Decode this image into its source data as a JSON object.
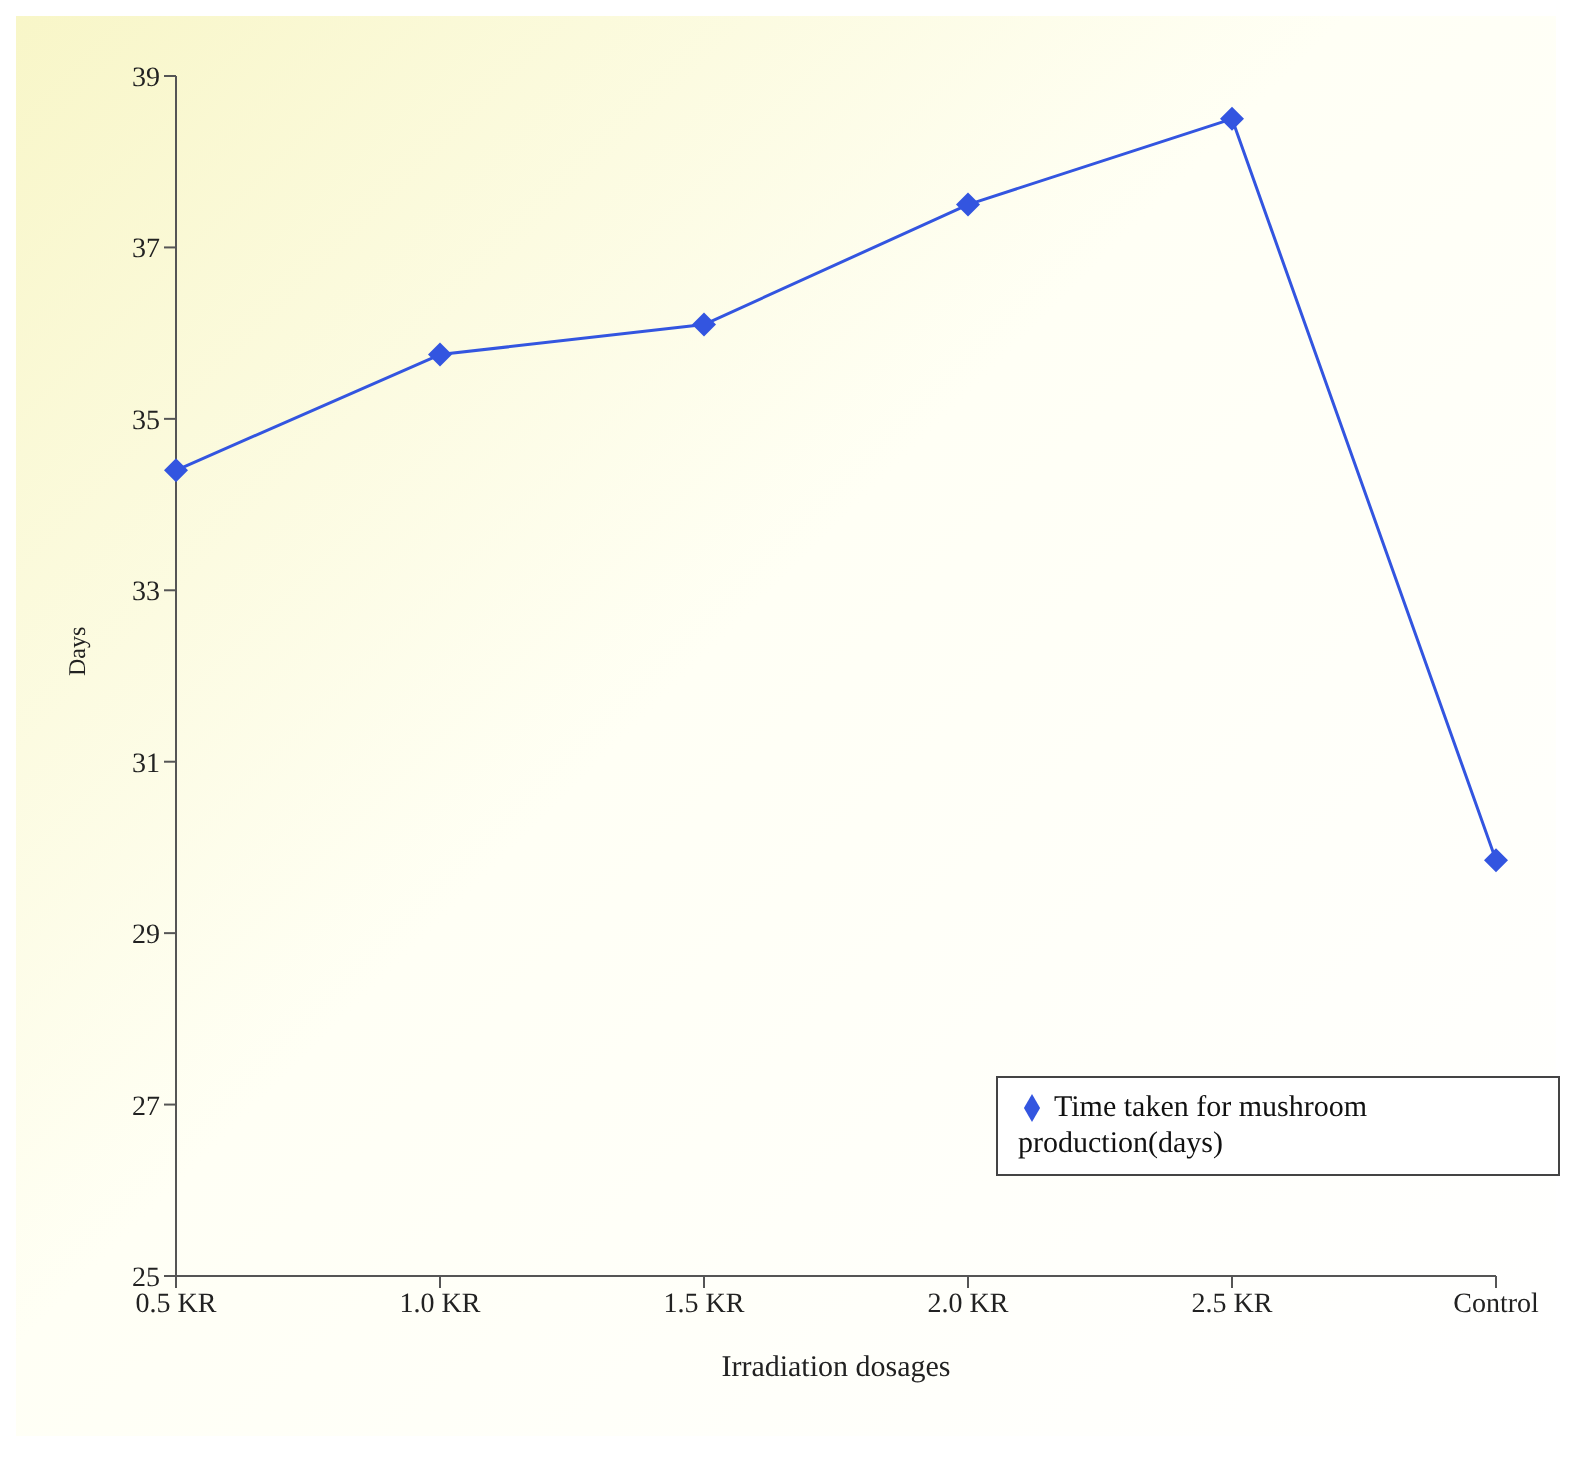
{
  "chart_data": {
    "type": "line",
    "xlabel": "Irradiation dosages",
    "ylabel": "Days",
    "categories": [
      "0.5 KR",
      "1.0 KR",
      "1.5 KR",
      "2.0 KR",
      "2.5  KR",
      "Control"
    ],
    "series": [
      {
        "name": "Time taken for mushroom production(days)",
        "color": "#3355e0",
        "values": [
          34.4,
          35.75,
          36.1,
          37.5,
          38.5,
          29.85
        ]
      }
    ],
    "ylim": [
      25,
      39
    ],
    "yticks": [
      25,
      27,
      29,
      31,
      33,
      35,
      37,
      39
    ],
    "grid": false,
    "legend": "bottom right",
    "marker": "diamond",
    "line_style": "solid"
  }
}
